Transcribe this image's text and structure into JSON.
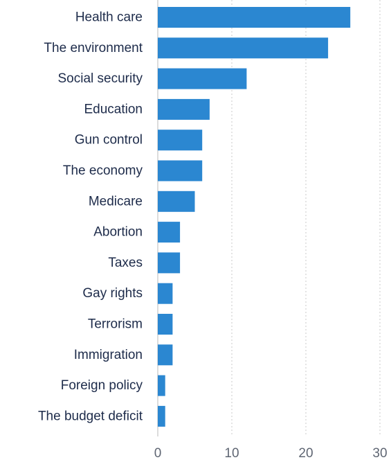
{
  "chart_data": {
    "type": "bar",
    "orientation": "horizontal",
    "title": "",
    "xlabel": "",
    "ylabel": "",
    "categories": [
      "Health care",
      "The environment",
      "Social security",
      "Education",
      "Gun control",
      "The economy",
      "Medicare",
      "Abortion",
      "Taxes",
      "Gay rights",
      "Terrorism",
      "Immigration",
      "Foreign policy",
      "The budget deficit"
    ],
    "values": [
      26,
      23,
      12,
      7,
      6,
      6,
      5,
      3,
      3,
      2,
      2,
      2,
      1,
      1
    ],
    "xlim": [
      0,
      30
    ],
    "xticks": [
      0,
      10,
      20,
      30
    ],
    "grid": "vertical-dotted",
    "legend": "none",
    "bar_color": "#2b87d1"
  }
}
